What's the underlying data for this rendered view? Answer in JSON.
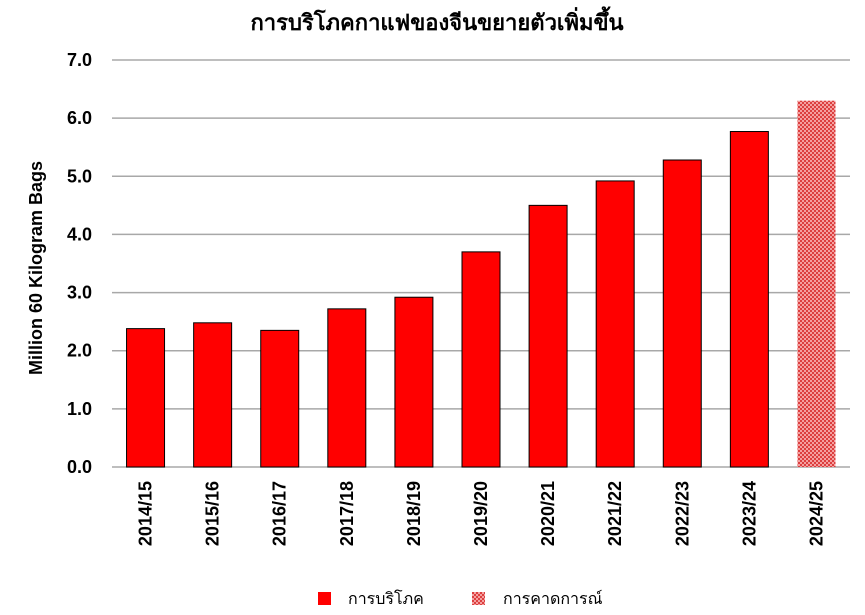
{
  "chart_data": {
    "type": "bar",
    "title": "การบริโภคกาแฟของจีนขยายตัวเพิ่มขึ้น",
    "ylabel": "Million 60 Kilogram Bags",
    "xlabel": "",
    "ylim": [
      0,
      7
    ],
    "yticks": [
      "0.0",
      "1.0",
      "2.0",
      "3.0",
      "4.0",
      "5.0",
      "6.0",
      "7.0"
    ],
    "grid": true,
    "legend_position": "bottom",
    "categories": [
      "2014/15",
      "2015/16",
      "2016/17",
      "2017/18",
      "2018/19",
      "2019/20",
      "2020/21",
      "2021/22",
      "2022/23",
      "2023/24",
      "2024/25"
    ],
    "values": [
      2.38,
      2.48,
      2.35,
      2.72,
      2.92,
      3.7,
      4.5,
      4.92,
      5.28,
      5.77,
      6.3
    ],
    "series": [
      {
        "name": "การบริโภค",
        "color": "#ff0000",
        "fill": "solid",
        "indices": [
          0,
          1,
          2,
          3,
          4,
          5,
          6,
          7,
          8,
          9
        ]
      },
      {
        "name": "การคาดการณ์",
        "color": "#e06666",
        "fill": "dotted",
        "indices": [
          10
        ]
      }
    ]
  }
}
